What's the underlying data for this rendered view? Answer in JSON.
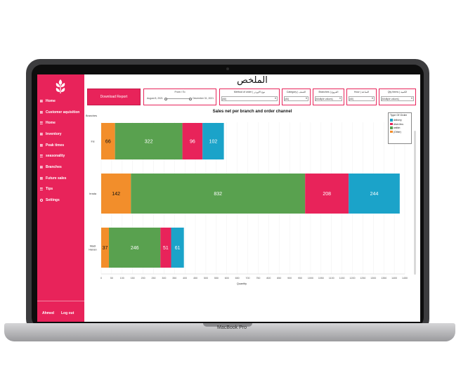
{
  "device": {
    "label": "MacBook Pro"
  },
  "app": {
    "title": "الملخص"
  },
  "sidebar": {
    "items": [
      {
        "label": "Home",
        "icon": "grid-icon"
      },
      {
        "label": "Customer aquisition",
        "icon": "grid-icon"
      },
      {
        "label": "Home",
        "icon": "grid-icon"
      },
      {
        "label": "Inventory",
        "icon": "grid-icon"
      },
      {
        "label": "Peak times",
        "icon": "grid-icon"
      },
      {
        "label": "seasonality",
        "icon": "grid-icon"
      },
      {
        "label": "Branches",
        "icon": "grid-icon"
      },
      {
        "label": "Future sales",
        "icon": "grid-icon"
      },
      {
        "label": "Tips",
        "icon": "grid-icon"
      },
      {
        "label": "Settings",
        "icon": "gear-icon"
      }
    ],
    "user": "Ahmed",
    "logout": "Log out",
    "accent": "#e8235a"
  },
  "toolbar": {
    "download_label": "Download Report",
    "date_range": {
      "label": "From / To",
      "start": "August 8, 2021",
      "end": "December 31, 2021"
    },
    "filters": [
      {
        "label": "Method of order | نوع الاوردر",
        "value": "(All)"
      },
      {
        "label": "Category | الصنف",
        "value": "(All)"
      },
      {
        "label": "Branches | الفروع",
        "value": "(Multiple values)"
      },
      {
        "label": "Hour | الساعة",
        "value": "(All)"
      },
      {
        "label": "Qty Items | الكمية",
        "value": "(Multiple values)"
      }
    ]
  },
  "chart_data": {
    "type": "bar",
    "orientation": "horizontal",
    "stacked": true,
    "title": "Sales net per branch and order channel",
    "xlabel": "Quantity",
    "ylabel": "Branches",
    "categories": [
      "Ins",
      "Irrada",
      "Wadi Hanan"
    ],
    "xlim": [
      0,
      1450
    ],
    "xticks": [
      0,
      50,
      100,
      150,
      200,
      250,
      300,
      350,
      400,
      450,
      500,
      550,
      600,
      650,
      700,
      750,
      800,
      850,
      900,
      950,
      1000,
      1050,
      1100,
      1150,
      1200,
      1250,
      1300,
      1350,
      1400,
      1450
    ],
    "grid": true,
    "legend": {
      "title": "Type Of Order",
      "placement": "top-right"
    },
    "series": [
      {
        "name": "(Other)",
        "color": "#f28e2b",
        "values": [
          66,
          142,
          37
        ]
      },
      {
        "name": "walkin",
        "color": "#59a14f",
        "values": [
          322,
          832,
          246
        ]
      },
      {
        "name": "drive-thru",
        "color": "#e8235a",
        "values": [
          96,
          208,
          51
        ]
      },
      {
        "name": "delivery",
        "color": "#1ba3c9",
        "values": [
          102,
          244,
          61
        ]
      }
    ],
    "legend_order": [
      3,
      2,
      1,
      0
    ]
  }
}
